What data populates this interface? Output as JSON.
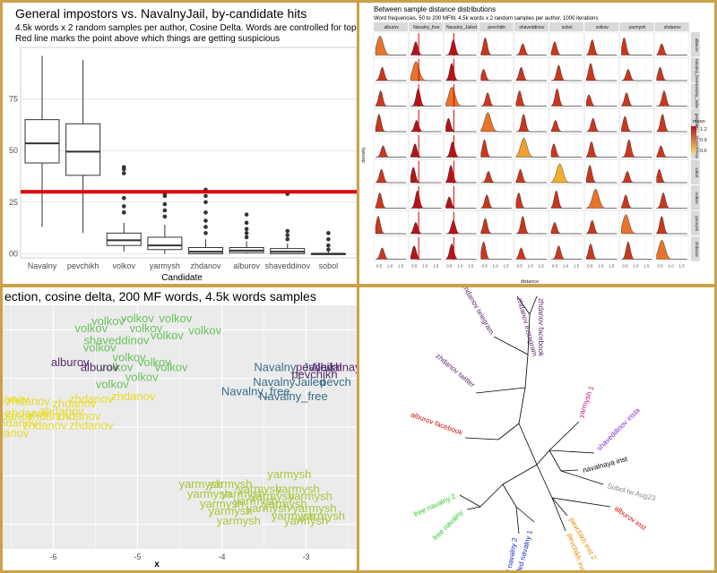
{
  "colors": {
    "gold_frame": "#c9a24a",
    "red_line": "#e00000",
    "green": "#67c25a",
    "teal": "#3a6e8a",
    "purple": "#5a2a6e",
    "yellow": "#e8dc2a",
    "yellowgreen": "#a8c83a",
    "density_low": "#f5b041",
    "density_high": "#b0151c"
  },
  "chart_data": [
    {
      "type": "box",
      "title": "General impostors vs. NavalnyJail, by-candidate hits",
      "subtitle_lines": [
        "4.5k words x 2 random samples per author, Cosine Delta. Words are controlled for topicality",
        "Red line marks the point above which things are getting suspicious"
      ],
      "xlabel": "Candidate",
      "y_tick_labels": [
        "75",
        "50",
        "25",
        "00"
      ],
      "y_tick_values": [
        0.75,
        0.5,
        0.25,
        0
      ],
      "ylim": [
        -0.02,
        1.0
      ],
      "categories": [
        "Navalny",
        "pevchikh",
        "volkov",
        "yarmysh",
        "zhdanov",
        "alburov",
        "shaveddinov",
        "sobol"
      ],
      "boxes": [
        {
          "min": 0.13,
          "q1": 0.44,
          "median": 0.535,
          "q3": 0.65,
          "max": 0.96,
          "outliers": []
        },
        {
          "min": 0.1,
          "q1": 0.38,
          "median": 0.495,
          "q3": 0.63,
          "max": 0.94,
          "outliers": []
        },
        {
          "min": 0.01,
          "q1": 0.04,
          "median": 0.065,
          "q3": 0.1,
          "max": 0.15,
          "outliers": [
            0.2,
            0.23,
            0.27,
            0.39,
            0.41,
            0.42
          ]
        },
        {
          "min": 0.0,
          "q1": 0.02,
          "median": 0.04,
          "q3": 0.08,
          "max": 0.14,
          "outliers": [
            0.18,
            0.21,
            0.24,
            0.28,
            0.29
          ]
        },
        {
          "min": 0.0,
          "q1": 0.0,
          "median": 0.01,
          "q3": 0.03,
          "max": 0.07,
          "outliers": [
            0.1,
            0.13,
            0.16,
            0.2,
            0.25,
            0.28,
            0.31
          ]
        },
        {
          "min": 0.0,
          "q1": 0.005,
          "median": 0.015,
          "q3": 0.03,
          "max": 0.06,
          "outliers": [
            0.08,
            0.1,
            0.12,
            0.15,
            0.19
          ]
        },
        {
          "min": 0.0,
          "q1": 0.0,
          "median": 0.01,
          "q3": 0.025,
          "max": 0.05,
          "outliers": [
            0.07,
            0.09,
            0.11,
            0.29
          ]
        },
        {
          "min": 0.0,
          "q1": 0.0,
          "median": 0.0,
          "q3": 0.0,
          "max": 0.01,
          "outliers": [
            0.02,
            0.04,
            0.07,
            0.1
          ]
        }
      ],
      "threshold": 0.3
    },
    {
      "type": "density-grid",
      "title": "Between sample distance distributions",
      "subtitle": "Word frequencies, 50 to 200 MFW, 4.5k words x 2 random samples per author, 1000 iterations",
      "col_labels": [
        "alburov",
        "Navalny_free",
        "Navalny_Jailed",
        "pevchikh",
        "shaveddinov",
        "sobol",
        "volkov",
        "yarmysh",
        "zhdanov"
      ],
      "row_labels": [
        "alburov",
        "Navalny_free",
        "Navalny_Jailed",
        "pevchikh",
        "shaveddinov",
        "sobol",
        "volkov",
        "yarmysh",
        "zhdanov"
      ],
      "xlabel": "distance",
      "ylabel": "density",
      "x_tick_labels": [
        "0.5",
        "1.0",
        "1.5"
      ],
      "legend_title": "mean",
      "legend_values": [
        "1.2",
        "0.9",
        "0.6"
      ],
      "legend_placement": "right"
    },
    {
      "type": "scatter-labels",
      "title": "ection, cosine delta, 200 MF words, 4.5k words samples",
      "xlabel": "x",
      "x_tick_labels": [
        "-6",
        "-5",
        "-4",
        "-3"
      ],
      "xlim": [
        -6.6,
        -2.4
      ],
      "ylim": [
        0,
        1
      ],
      "labels": [
        {
          "t": "volkov",
          "x": -5.35,
          "y": 0.92,
          "c": "green"
        },
        {
          "t": "volkov",
          "x": -5.0,
          "y": 0.93,
          "c": "green"
        },
        {
          "t": "volkov",
          "x": -4.55,
          "y": 0.93,
          "c": "green"
        },
        {
          "t": "volkov",
          "x": -5.55,
          "y": 0.89,
          "c": "green"
        },
        {
          "t": "volkov",
          "x": -4.9,
          "y": 0.89,
          "c": "green"
        },
        {
          "t": "volkov",
          "x": -4.2,
          "y": 0.88,
          "c": "green"
        },
        {
          "t": "volkov",
          "x": -4.65,
          "y": 0.86,
          "c": "green"
        },
        {
          "t": "shaveddinov",
          "x": -5.25,
          "y": 0.84,
          "c": "green"
        },
        {
          "t": "volkov",
          "x": -5.45,
          "y": 0.81,
          "c": "green"
        },
        {
          "t": "volkov",
          "x": -5.1,
          "y": 0.77,
          "c": "green"
        },
        {
          "t": "volkov",
          "x": -4.8,
          "y": 0.75,
          "c": "green"
        },
        {
          "t": "volkov",
          "x": -5.25,
          "y": 0.73,
          "c": "green"
        },
        {
          "t": "volkov",
          "x": -4.6,
          "y": 0.73,
          "c": "green"
        },
        {
          "t": "volkov",
          "x": -4.95,
          "y": 0.69,
          "c": "green"
        },
        {
          "t": "volkov",
          "x": -5.3,
          "y": 0.66,
          "c": "green"
        },
        {
          "t": "alburov",
          "x": -5.8,
          "y": 0.75,
          "c": "purple"
        },
        {
          "t": "alburov",
          "x": -5.45,
          "y": 0.73,
          "c": "purple"
        },
        {
          "t": "Navalny_Jailed",
          "x": -3.15,
          "y": 0.73,
          "c": "teal"
        },
        {
          "t": "pevchikh",
          "x": -2.85,
          "y": 0.73,
          "c": "purple"
        },
        {
          "t": "Navalnaya",
          "x": -2.6,
          "y": 0.73,
          "c": "purple"
        },
        {
          "t": "pevchikh",
          "x": -2.9,
          "y": 0.7,
          "c": "purple"
        },
        {
          "t": "NavalnyJailed",
          "x": -3.2,
          "y": 0.67,
          "c": "teal"
        },
        {
          "t": "pevch",
          "x": -2.65,
          "y": 0.67,
          "c": "teal"
        },
        {
          "t": "Navalny_free",
          "x": -3.6,
          "y": 0.63,
          "c": "teal"
        },
        {
          "t": "Navalny_free",
          "x": -3.15,
          "y": 0.61,
          "c": "teal"
        },
        {
          "t": "zhdanov",
          "x": -5.05,
          "y": 0.61,
          "c": "yellow"
        },
        {
          "t": "zhdanov",
          "x": -6.3,
          "y": 0.59,
          "c": "yellow"
        },
        {
          "t": "zhdanov",
          "x": -5.55,
          "y": 0.6,
          "c": "yellow"
        },
        {
          "t": "zhdanov",
          "x": -5.75,
          "y": 0.58,
          "c": "yellow"
        },
        {
          "t": "zhdanov",
          "x": -6.55,
          "y": 0.6,
          "c": "yellow"
        },
        {
          "t": "zhdanov",
          "x": -5.9,
          "y": 0.55,
          "c": "yellow"
        },
        {
          "t": "zhdanov",
          "x": -6.3,
          "y": 0.54,
          "c": "yellow"
        },
        {
          "t": "zhdanov",
          "x": -6.05,
          "y": 0.53,
          "c": "yellow"
        },
        {
          "t": "zhdanov",
          "x": -5.7,
          "y": 0.53,
          "c": "yellow"
        },
        {
          "t": "zhdanov",
          "x": -6.5,
          "y": 0.53,
          "c": "yellow"
        },
        {
          "t": "zhdanov",
          "x": -6.45,
          "y": 0.5,
          "c": "yellow"
        },
        {
          "t": "zhdanov",
          "x": -6.1,
          "y": 0.49,
          "c": "yellow"
        },
        {
          "t": "zhdanov",
          "x": -5.55,
          "y": 0.49,
          "c": "yellow"
        },
        {
          "t": "zhdanov",
          "x": -6.55,
          "y": 0.46,
          "c": "yellow"
        },
        {
          "t": "yarmysh",
          "x": -3.2,
          "y": 0.29,
          "c": "yellowgreen"
        },
        {
          "t": "yarmysh",
          "x": -4.25,
          "y": 0.25,
          "c": "yellowgreen"
        },
        {
          "t": "yarmysh",
          "x": -3.9,
          "y": 0.25,
          "c": "yellowgreen"
        },
        {
          "t": "yarmysh",
          "x": -3.55,
          "y": 0.23,
          "c": "yellowgreen"
        },
        {
          "t": "yarmysh",
          "x": -3.1,
          "y": 0.23,
          "c": "yellowgreen"
        },
        {
          "t": "yarmysh",
          "x": -3.75,
          "y": 0.21,
          "c": "yellowgreen"
        },
        {
          "t": "yarmysh",
          "x": -4.15,
          "y": 0.21,
          "c": "yellowgreen"
        },
        {
          "t": "yarmysh",
          "x": -3.4,
          "y": 0.2,
          "c": "yellowgreen"
        },
        {
          "t": "yarmysh",
          "x": -2.95,
          "y": 0.2,
          "c": "yellowgreen"
        },
        {
          "t": "yarmysh",
          "x": -3.6,
          "y": 0.18,
          "c": "yellowgreen"
        },
        {
          "t": "yarmysh",
          "x": -3.25,
          "y": 0.17,
          "c": "yellowgreen"
        },
        {
          "t": "yarmysh",
          "x": -4.0,
          "y": 0.17,
          "c": "yellowgreen"
        },
        {
          "t": "yarmysh",
          "x": -3.45,
          "y": 0.15,
          "c": "yellowgreen"
        },
        {
          "t": "yarmysh",
          "x": -2.9,
          "y": 0.15,
          "c": "yellowgreen"
        },
        {
          "t": "yarmysh",
          "x": -3.9,
          "y": 0.14,
          "c": "yellowgreen"
        },
        {
          "t": "yarmysh",
          "x": -3.15,
          "y": 0.12,
          "c": "yellowgreen"
        },
        {
          "t": "yarmysh",
          "x": -2.8,
          "y": 0.12,
          "c": "yellowgreen"
        },
        {
          "t": "yarmysh",
          "x": -3.8,
          "y": 0.1,
          "c": "yellowgreen"
        },
        {
          "t": "yarmysh",
          "x": -3.0,
          "y": 0.1,
          "c": "yellowgreen"
        }
      ]
    },
    {
      "type": "tree",
      "tips": [
        {
          "t": "zhdanov facebook",
          "c": "#5a2a6e"
        },
        {
          "t": "zhdanov instagram",
          "c": "#5a2a6e"
        },
        {
          "t": "zhdanov telegram",
          "c": "#5a2a6e"
        },
        {
          "t": "zhdanov twitter",
          "c": "#5a2a6e"
        },
        {
          "t": "alburov facebook",
          "c": "#d01010"
        },
        {
          "t": "yarmysh 1",
          "c": "#c0108a"
        },
        {
          "t": "shaveddinov insta",
          "c": "#8a2ad0"
        },
        {
          "t": "navalnaya inst",
          "c": "#000000"
        },
        {
          "t": "Sobol tw Aug23",
          "c": "#888888"
        },
        {
          "t": "alburov inst",
          "c": "#d01010"
        },
        {
          "t": "pevchikh inst 2",
          "c": "#e08a00"
        },
        {
          "t": "pevchikh inst 1",
          "c": "#e08a00"
        },
        {
          "t": "jailed navalny 1",
          "c": "#1a2ac8"
        },
        {
          "t": "jailed navalny 2",
          "c": "#1a2ac8"
        },
        {
          "t": "free navalny",
          "c": "#2ac82a"
        },
        {
          "t": "free navalny 2",
          "c": "#2ac82a"
        }
      ]
    }
  ]
}
